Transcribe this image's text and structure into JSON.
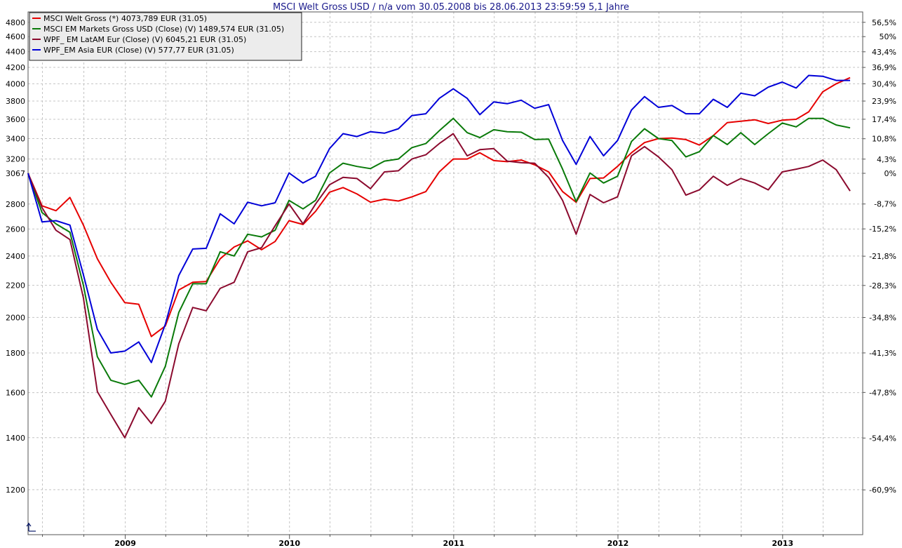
{
  "chart_data": {
    "type": "line",
    "title": "MSCI Welt Gross USD / n/a vom 30.05.2008 bis 28.06.2013 23:59:59 5,1 Jahre",
    "xlabel": "",
    "ylabel": "",
    "scale": "log",
    "x_start": "2008-05-30",
    "x_end": "2013-06-28",
    "ylim": [
      1050,
      4950
    ],
    "y_left_ticks": [
      "4800",
      "4600",
      "4400",
      "4200",
      "4000",
      "3800",
      "3600",
      "3400",
      "3200",
      "3067",
      "2800",
      "2600",
      "2400",
      "2200",
      "2000",
      "1800",
      "1600",
      "1400",
      "1200"
    ],
    "y_right_ticks": [
      "56,5%",
      "50%",
      "43,4%",
      "36,9%",
      "30,4%",
      "23,9%",
      "17,4%",
      "10,8%",
      "4,3%",
      "0%",
      "-8,7%",
      "-15,2%",
      "-21,8%",
      "-28,3%",
      "-34,8%",
      "-41,3%",
      "-47,8%",
      "-54,4%",
      "-60,9%"
    ],
    "x_ticks": [
      "2009",
      "2010",
      "2011",
      "2012",
      "2013"
    ],
    "grid": true,
    "legend_position": "top-left",
    "x": [
      "2008-05",
      "2008-06",
      "2008-07",
      "2008-08",
      "2008-09",
      "2008-10",
      "2008-11",
      "2008-12",
      "2009-01",
      "2009-02",
      "2009-03",
      "2009-04",
      "2009-05",
      "2009-06",
      "2009-07",
      "2009-08",
      "2009-09",
      "2009-10",
      "2009-11",
      "2009-12",
      "2010-01",
      "2010-02",
      "2010-03",
      "2010-04",
      "2010-05",
      "2010-06",
      "2010-07",
      "2010-08",
      "2010-09",
      "2010-10",
      "2010-11",
      "2010-12",
      "2011-01",
      "2011-02",
      "2011-03",
      "2011-04",
      "2011-05",
      "2011-06",
      "2011-07",
      "2011-08",
      "2011-09",
      "2011-10",
      "2011-11",
      "2011-12",
      "2012-01",
      "2012-02",
      "2012-03",
      "2012-04",
      "2012-05",
      "2012-06",
      "2012-07",
      "2012-08",
      "2012-09",
      "2012-10",
      "2012-11",
      "2012-12",
      "2013-01",
      "2013-02",
      "2013-03",
      "2013-04",
      "2013-05"
    ],
    "series": [
      {
        "name": "MSCI Welt Gross (*) 4073,789 EUR (31.05)",
        "color": "#e60000",
        "values": [
          3067,
          2785,
          2745,
          2855,
          2630,
          2380,
          2220,
          2090,
          2080,
          1890,
          1950,
          2170,
          2220,
          2225,
          2380,
          2465,
          2510,
          2445,
          2505,
          2665,
          2635,
          2740,
          2900,
          2940,
          2885,
          2815,
          2840,
          2825,
          2860,
          2905,
          3080,
          3200,
          3200,
          3260,
          3185,
          3175,
          3190,
          3145,
          3080,
          2905,
          2815,
          3020,
          3025,
          3130,
          3260,
          3360,
          3400,
          3405,
          3390,
          3335,
          3430,
          3565,
          3580,
          3595,
          3555,
          3590,
          3600,
          3680,
          3905,
          4000,
          4073
        ]
      },
      {
        "name": "MSCI EM Markets Gross USD (Close) (V) 1489,574 EUR (31.05)",
        "color": "#0a7a0a",
        "values": [
          3067,
          2730,
          2640,
          2575,
          2200,
          1780,
          1660,
          1640,
          1660,
          1580,
          1730,
          2030,
          2210,
          2210,
          2430,
          2400,
          2560,
          2540,
          2590,
          2830,
          2760,
          2830,
          3070,
          3160,
          3130,
          3110,
          3180,
          3200,
          3310,
          3350,
          3480,
          3610,
          3460,
          3410,
          3490,
          3470,
          3465,
          3390,
          3395,
          3105,
          2820,
          3070,
          2980,
          3040,
          3370,
          3500,
          3400,
          3380,
          3220,
          3270,
          3430,
          3340,
          3460,
          3340,
          3450,
          3560,
          3520,
          3610,
          3610,
          3540,
          3510
        ]
      },
      {
        "name": "WPF_ EM LatAM Eur (Close) (V) 6045,21 EUR (31.05)",
        "color": "#8b0a2e",
        "values": [
          3067,
          2770,
          2590,
          2520,
          2120,
          1605,
          1500,
          1400,
          1530,
          1460,
          1560,
          1850,
          2060,
          2040,
          2180,
          2220,
          2430,
          2460,
          2625,
          2800,
          2640,
          2800,
          2965,
          3030,
          3020,
          2930,
          3080,
          3090,
          3200,
          3240,
          3350,
          3450,
          3230,
          3290,
          3300,
          3180,
          3165,
          3160,
          3030,
          2830,
          2560,
          2880,
          2810,
          2860,
          3230,
          3320,
          3220,
          3100,
          2875,
          2920,
          3040,
          2960,
          3020,
          2980,
          2920,
          3080,
          3105,
          3130,
          3190,
          3100,
          2910
        ]
      },
      {
        "name": "WPF_EM Asia EUR (Close) (V) 577,77 EUR (31.05)",
        "color": "#0000d8",
        "values": [
          3067,
          2655,
          2665,
          2630,
          2270,
          1930,
          1800,
          1810,
          1860,
          1750,
          1960,
          2265,
          2450,
          2455,
          2720,
          2640,
          2815,
          2785,
          2810,
          3070,
          2980,
          3040,
          3300,
          3450,
          3420,
          3470,
          3455,
          3500,
          3640,
          3660,
          3830,
          3940,
          3830,
          3650,
          3790,
          3770,
          3810,
          3720,
          3760,
          3380,
          3150,
          3420,
          3230,
          3380,
          3700,
          3850,
          3730,
          3750,
          3660,
          3660,
          3820,
          3730,
          3890,
          3860,
          3960,
          4020,
          3950,
          4100,
          4090,
          4040,
          4040
        ]
      }
    ]
  }
}
